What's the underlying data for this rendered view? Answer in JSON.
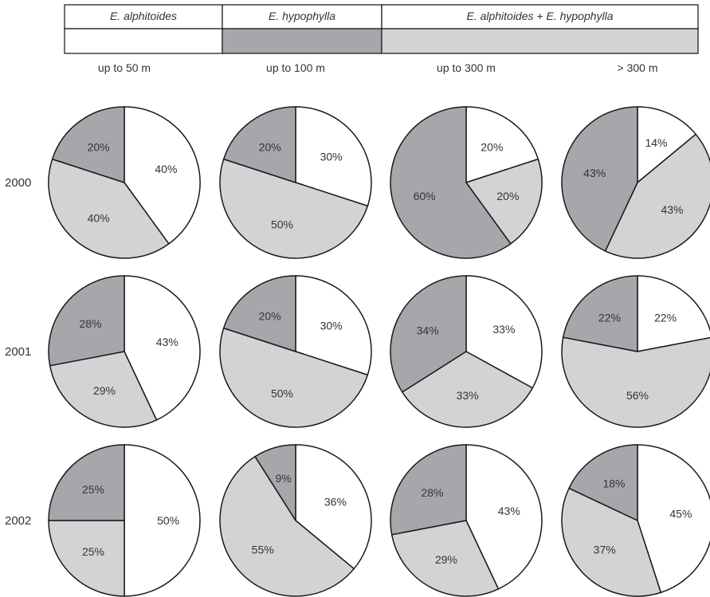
{
  "legend": {
    "species": [
      {
        "label": "E. alphitoides",
        "color": "#ffffff"
      },
      {
        "label": "E. hypophylla",
        "color": "#a7a7ab"
      },
      {
        "label": "E. alphitoides + E. hypophylla",
        "color": "#d3d3d5"
      }
    ]
  },
  "chart_data": {
    "type": "pie",
    "columns": [
      "up to 50 m",
      "up to 100 m",
      "up to 300 m",
      "> 300 m"
    ],
    "rows": [
      "2000",
      "2001",
      "2002"
    ],
    "slice_order": [
      "E. alphitoides",
      "E. alphitoides + E. hypophylla",
      "E. hypophylla"
    ],
    "colors": [
      "#ffffff",
      "#d3d3d5",
      "#a7a7ab"
    ],
    "grid": false,
    "pies": [
      [
        {
          "labels": [
            "40%",
            "40%",
            "20%"
          ],
          "values": [
            40,
            40,
            20
          ]
        },
        {
          "labels": [
            "30%",
            "50%",
            "20%"
          ],
          "values": [
            30,
            50,
            20
          ]
        },
        {
          "labels": [
            "20%",
            "20%",
            "60%"
          ],
          "values": [
            20,
            20,
            60
          ]
        },
        {
          "labels": [
            "14%",
            "43%",
            "43%"
          ],
          "values": [
            14,
            43,
            43
          ]
        }
      ],
      [
        {
          "labels": [
            "43%",
            "29%",
            "28%"
          ],
          "values": [
            43,
            29,
            28
          ]
        },
        {
          "labels": [
            "30%",
            "50%",
            "20%"
          ],
          "values": [
            30,
            50,
            20
          ]
        },
        {
          "labels": [
            "33%",
            "33%",
            "34%"
          ],
          "values": [
            33,
            33,
            34
          ]
        },
        {
          "labels": [
            "22%",
            "56%",
            "22%"
          ],
          "values": [
            22,
            56,
            22
          ]
        }
      ],
      [
        {
          "labels": [
            "50%",
            "25%",
            "25%"
          ],
          "values": [
            50,
            25,
            25
          ]
        },
        {
          "labels": [
            "36%",
            "55%",
            "9%"
          ],
          "values": [
            36,
            55,
            9
          ]
        },
        {
          "labels": [
            "43%",
            "29%",
            "28%"
          ],
          "values": [
            43,
            29,
            28
          ]
        },
        {
          "labels": [
            "45%",
            "37%",
            "18%"
          ],
          "values": [
            45,
            37,
            18
          ]
        }
      ]
    ]
  }
}
